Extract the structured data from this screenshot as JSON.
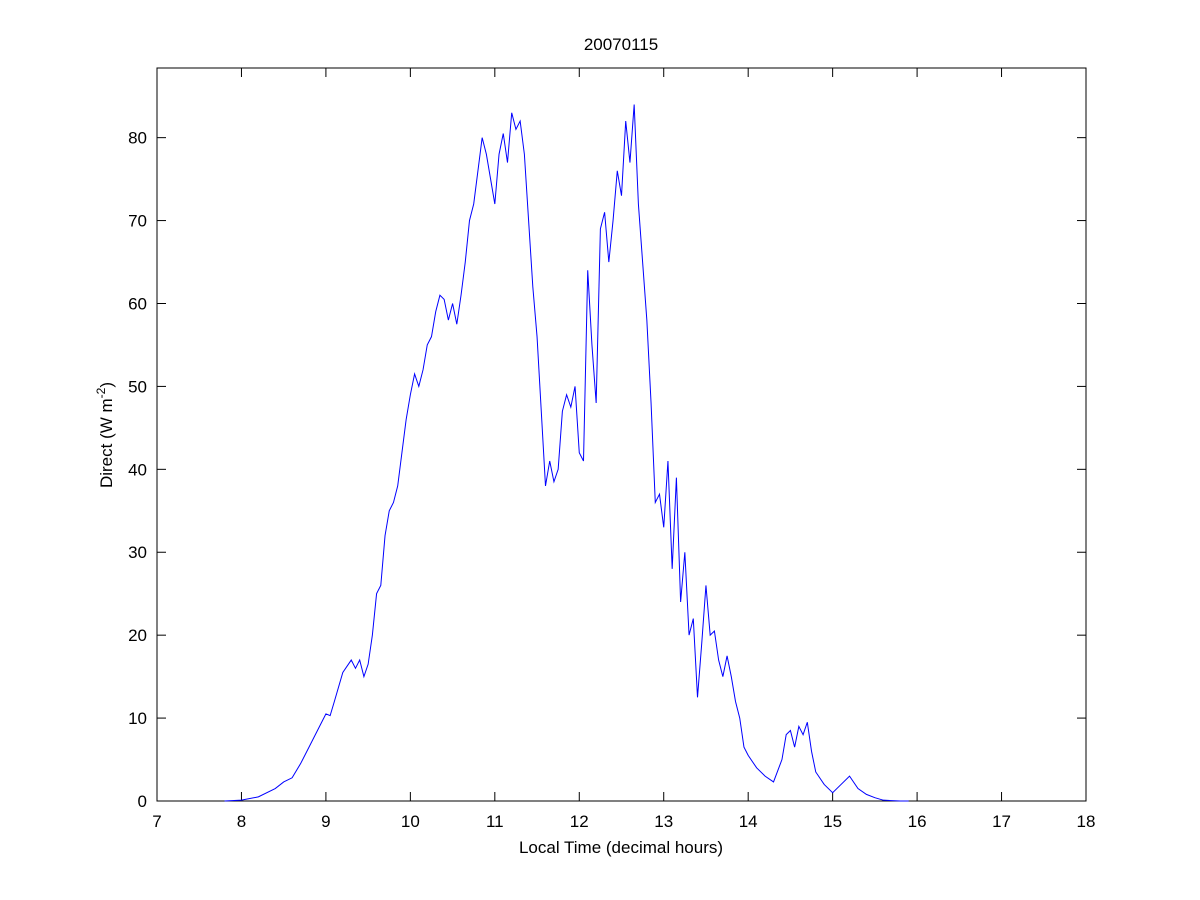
{
  "chart_data": {
    "type": "line",
    "title": "20070115",
    "xlabel": "Local Time (decimal hours)",
    "ylabel": {
      "text": "Direct (W m",
      "superscript": "-2",
      "suffix": ")"
    },
    "xlim": [
      7,
      18
    ],
    "xticks": [
      7,
      8,
      9,
      10,
      11,
      12,
      13,
      14,
      15,
      16,
      17,
      18
    ],
    "ylim": [
      0,
      88.4
    ],
    "yticks": [
      0,
      10,
      20,
      30,
      40,
      50,
      60,
      70,
      80
    ],
    "grid": false,
    "series": [
      {
        "color": "#0000ff",
        "x": [
          7.8,
          8.0,
          8.2,
          8.4,
          8.5,
          8.6,
          8.7,
          8.8,
          8.9,
          9.0,
          9.05,
          9.1,
          9.2,
          9.3,
          9.35,
          9.4,
          9.45,
          9.5,
          9.55,
          9.6,
          9.65,
          9.7,
          9.75,
          9.8,
          9.85,
          9.9,
          9.95,
          10.0,
          10.05,
          10.1,
          10.15,
          10.2,
          10.25,
          10.3,
          10.35,
          10.4,
          10.45,
          10.5,
          10.55,
          10.6,
          10.65,
          10.7,
          10.75,
          10.8,
          10.85,
          10.9,
          10.95,
          11.0,
          11.05,
          11.1,
          11.15,
          11.2,
          11.25,
          11.3,
          11.35,
          11.4,
          11.45,
          11.5,
          11.55,
          11.6,
          11.65,
          11.7,
          11.75,
          11.8,
          11.85,
          11.9,
          11.95,
          12.0,
          12.05,
          12.1,
          12.15,
          12.2,
          12.25,
          12.3,
          12.35,
          12.4,
          12.45,
          12.5,
          12.55,
          12.6,
          12.65,
          12.7,
          12.75,
          12.8,
          12.85,
          12.9,
          12.95,
          13.0,
          13.05,
          13.1,
          13.15,
          13.2,
          13.25,
          13.3,
          13.35,
          13.4,
          13.45,
          13.5,
          13.55,
          13.6,
          13.65,
          13.7,
          13.75,
          13.8,
          13.85,
          13.9,
          13.95,
          14.0,
          14.1,
          14.2,
          14.3,
          14.4,
          14.45,
          14.5,
          14.55,
          14.6,
          14.65,
          14.7,
          14.75,
          14.8,
          14.9,
          15.0,
          15.1,
          15.2,
          15.3,
          15.4,
          15.5,
          15.6,
          15.8,
          15.9
        ],
        "values": [
          0,
          0.1,
          0.5,
          1.5,
          2.3,
          2.8,
          4.5,
          6.5,
          8.5,
          10.5,
          10.3,
          12,
          15.5,
          17,
          16,
          17,
          15,
          16.5,
          20,
          25,
          26,
          32,
          35,
          36,
          38,
          42,
          46,
          49,
          51.5,
          50,
          52,
          55,
          56,
          59,
          61,
          60.5,
          58,
          60,
          57.5,
          61,
          65,
          70,
          72,
          76,
          80,
          78,
          75,
          72,
          78,
          80.5,
          77,
          83,
          81,
          82,
          78,
          70,
          62,
          56,
          47,
          38,
          41,
          38.5,
          40,
          47,
          49,
          47.5,
          50,
          42,
          41,
          64,
          55,
          48,
          69,
          71,
          65,
          70,
          76,
          73,
          82,
          77,
          84,
          72,
          65,
          58,
          48,
          36,
          37,
          33,
          41,
          28,
          39,
          24,
          30,
          20,
          22,
          12.5,
          19,
          26,
          20,
          20.5,
          17,
          15,
          17.5,
          15,
          12,
          10,
          6.5,
          5.5,
          4,
          3,
          2.3,
          5,
          8,
          8.5,
          6.5,
          9,
          8,
          9.5,
          6,
          3.5,
          2,
          1,
          2,
          3,
          1.5,
          0.8,
          0.4,
          0.1,
          0,
          0
        ]
      }
    ]
  }
}
